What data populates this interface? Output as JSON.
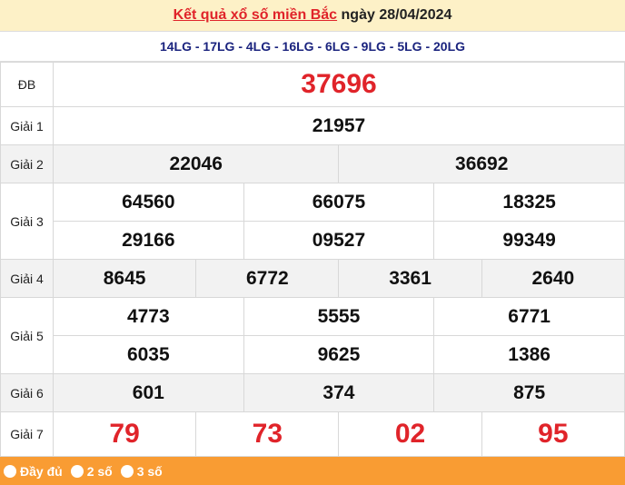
{
  "header": {
    "title_link": "Kết quả xổ số miền Bắc",
    "date_text": "ngày 28/04/2024"
  },
  "codes": "14LG - 17LG - 4LG - 16LG - 6LG - 9LG - 5LG - 20LG",
  "prizes": {
    "db": {
      "label": "ĐB",
      "values": [
        "37696"
      ]
    },
    "g1": {
      "label": "Giải 1",
      "values": [
        "21957"
      ]
    },
    "g2": {
      "label": "Giải 2",
      "values": [
        "22046",
        "36692"
      ]
    },
    "g3": {
      "label": "Giải 3",
      "values": [
        "64560",
        "66075",
        "18325",
        "29166",
        "09527",
        "99349"
      ]
    },
    "g4": {
      "label": "Giải 4",
      "values": [
        "8645",
        "6772",
        "3361",
        "2640"
      ]
    },
    "g5": {
      "label": "Giải 5",
      "values": [
        "4773",
        "5555",
        "6771",
        "6035",
        "9625",
        "1386"
      ]
    },
    "g6": {
      "label": "Giải 6",
      "values": [
        "601",
        "374",
        "875"
      ]
    },
    "g7": {
      "label": "Giải 7",
      "values": [
        "79",
        "73",
        "02",
        "95"
      ]
    }
  },
  "footer": {
    "options": [
      "Đầy đủ",
      "2 số",
      "3 số"
    ]
  },
  "colors": {
    "accent_red": "#e0242a",
    "header_bg": "#fdf1c7",
    "footer_bg": "#f99c33",
    "code_blue": "#1a237e"
  }
}
